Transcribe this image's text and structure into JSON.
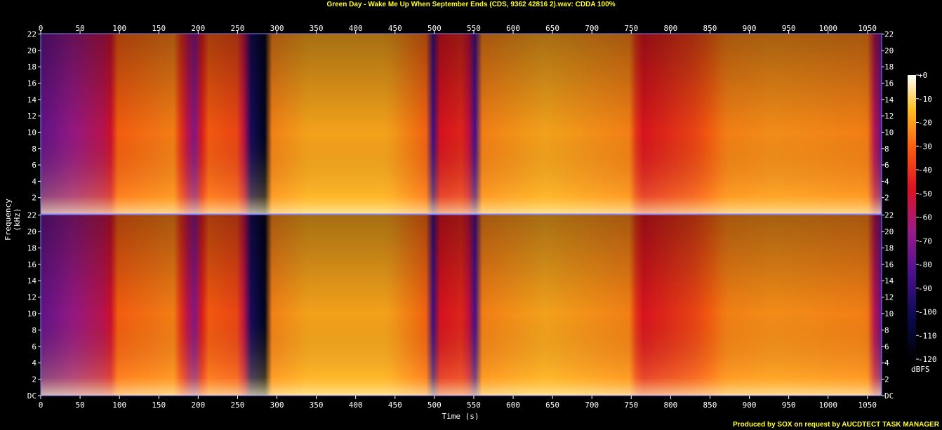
{
  "title": "Green Day - Wake Me Up When September Ends (CDS, 9362 42816 2).wav: CDDA 100%",
  "footer": "Produced by SOX on request by AUCDTECT TASK MANAGER",
  "colors": {
    "title": "#ffff33",
    "axis": "#ffffff",
    "frame": "#8080ff"
  },
  "chart_data": {
    "type": "heatmap",
    "title": "Green Day - Wake Me Up When September Ends (CDS, 9362 42816 2).wav: CDDA 100%",
    "xlabel": "Time (s)",
    "ylabel": "Frequency (kHz)",
    "colorbar_label": "dBFS",
    "xlim": [
      0,
      1068
    ],
    "ylim": [
      0,
      22.05
    ],
    "x_ticks": [
      0,
      50,
      100,
      150,
      200,
      250,
      300,
      350,
      400,
      450,
      500,
      550,
      600,
      650,
      700,
      750,
      800,
      850,
      900,
      950,
      1000,
      1050
    ],
    "y_tick_labels": [
      "DC",
      "2",
      "4",
      "6",
      "8",
      "10",
      "12",
      "14",
      "16",
      "18",
      "20",
      "22"
    ],
    "colorbar_ticks": [
      "+0",
      "-10",
      "-20",
      "-30",
      "-40",
      "-50",
      "-60",
      "-70",
      "-80",
      "-90",
      "-100",
      "-110",
      "-120"
    ],
    "channels": [
      "left",
      "right"
    ],
    "intensity_profile": {
      "time_s": [
        0,
        40,
        88,
        95,
        170,
        195,
        210,
        255,
        265,
        285,
        290,
        340,
        440,
        495,
        500,
        505,
        540,
        555,
        560,
        640,
        750,
        760,
        830,
        870,
        930,
        1050,
        1065
      ],
      "level": [
        0.35,
        0.45,
        0.55,
        0.75,
        0.8,
        0.4,
        0.75,
        0.7,
        0.2,
        0.05,
        0.8,
        0.85,
        0.85,
        0.75,
        0.05,
        0.6,
        0.65,
        0.2,
        0.8,
        0.85,
        0.8,
        0.6,
        0.7,
        0.8,
        0.82,
        0.8,
        0.35
      ]
    }
  }
}
